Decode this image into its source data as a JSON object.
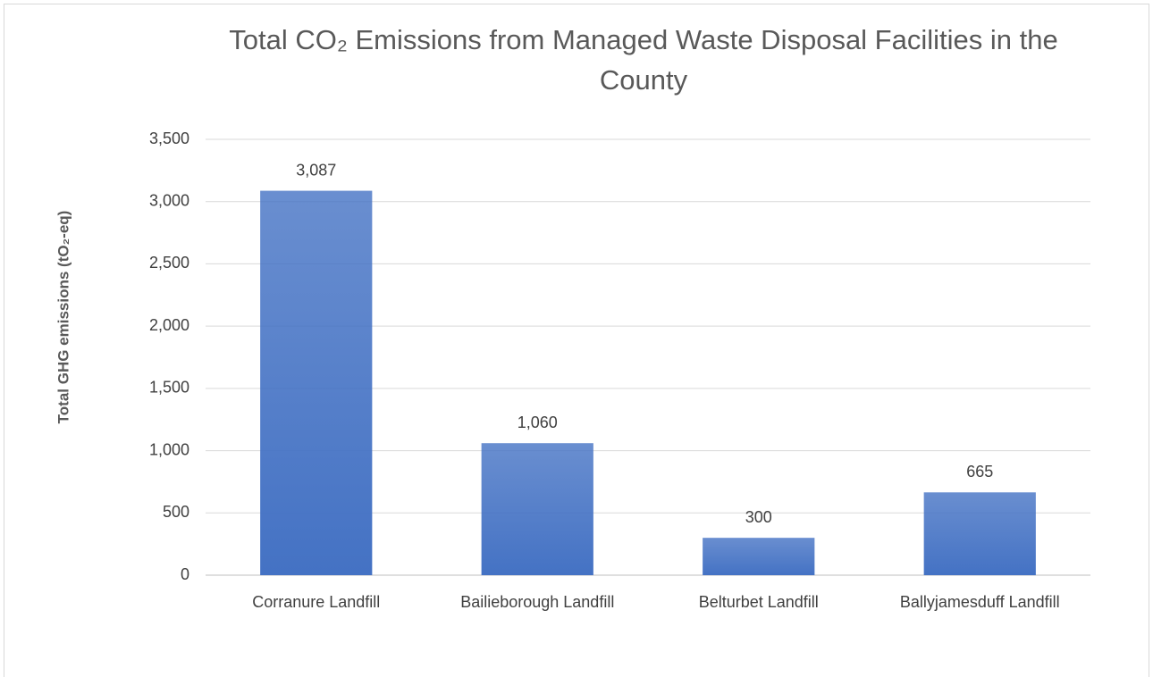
{
  "chart_data": {
    "type": "bar",
    "title": "Total CO₂ Emissions from Managed Waste Disposal Facilities in the County",
    "y_label": "Total GHG emissions (tO₂-eq)",
    "categories": [
      "Corranure Landfill",
      "Bailieborough Landfill",
      "Belturbet Landfill",
      "Ballyjamesduff Landfill"
    ],
    "values": [
      3087,
      1060,
      300,
      665
    ],
    "value_labels": [
      "3,087",
      "1,060",
      "300",
      "665"
    ],
    "color": "#4472c4",
    "ylim": [
      0,
      3500
    ],
    "yticks": [
      0,
      500,
      {
        "value": 1000,
        "label": "1,000"
      },
      {
        "value": 1500,
        "label": "1,500"
      },
      {
        "value": 2000,
        "label": "2,000"
      },
      {
        "value": 2500,
        "label": "2,500"
      },
      {
        "value": 3000,
        "label": "3,000"
      },
      {
        "value": 3500,
        "label": "3,500"
      }
    ],
    "grid": true
  }
}
